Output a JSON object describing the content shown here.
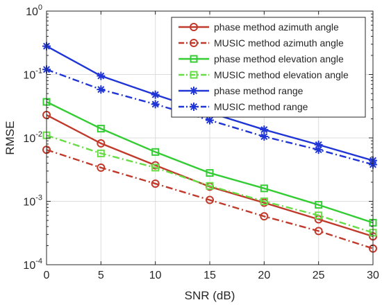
{
  "chart_data": {
    "type": "line",
    "xlabel": "SNR (dB)",
    "ylabel": "RMSE",
    "x": [
      0,
      5,
      10,
      15,
      20,
      25,
      30
    ],
    "xlim": [
      0,
      30
    ],
    "ylim": [
      0.0001,
      1
    ],
    "yscale": "log",
    "x_ticks": [
      "0",
      "5",
      "10",
      "15",
      "20",
      "25",
      "30"
    ],
    "y_ticks": [
      {
        "value": 0.0001,
        "base": "10",
        "exp": "-4"
      },
      {
        "value": 0.001,
        "base": "10",
        "exp": "-3"
      },
      {
        "value": 0.01,
        "base": "10",
        "exp": "-2"
      },
      {
        "value": 0.1,
        "base": "10",
        "exp": "-1"
      },
      {
        "value": 1,
        "base": "10",
        "exp": "0"
      }
    ],
    "grid": true,
    "legend_position": "top-right",
    "series": [
      {
        "name": "phase method azimuth angle",
        "color": "#c0392b",
        "dash": "solid",
        "marker": "circle",
        "values": [
          0.023,
          0.0082,
          0.0037,
          0.0017,
          0.00095,
          0.00052,
          0.00028
        ]
      },
      {
        "name": "MUSIC method azimuth angle",
        "color": "#c0392b",
        "dash": "dashdot",
        "marker": "circle",
        "values": [
          0.0065,
          0.0034,
          0.0019,
          0.00105,
          0.00058,
          0.00034,
          0.00018
        ]
      },
      {
        "name": "phase method elevation angle",
        "color": "#33cc33",
        "dash": "solid",
        "marker": "square",
        "values": [
          0.037,
          0.014,
          0.006,
          0.0028,
          0.0016,
          0.00088,
          0.00046
        ]
      },
      {
        "name": "MUSIC method elevation angle",
        "color": "#66dd44",
        "dash": "dashdot",
        "marker": "square",
        "values": [
          0.011,
          0.0057,
          0.0034,
          0.00175,
          0.001,
          0.0006,
          0.00032
        ]
      },
      {
        "name": "phase method range",
        "color": "#1f35d6",
        "dash": "solid",
        "marker": "asterisk",
        "values": [
          0.28,
          0.095,
          0.048,
          0.025,
          0.0135,
          0.0078,
          0.0044
        ]
      },
      {
        "name": "MUSIC method range",
        "color": "#1f35d6",
        "dash": "dashdot",
        "marker": "asterisk",
        "values": [
          0.12,
          0.058,
          0.034,
          0.019,
          0.0105,
          0.0065,
          0.0038
        ]
      }
    ]
  }
}
